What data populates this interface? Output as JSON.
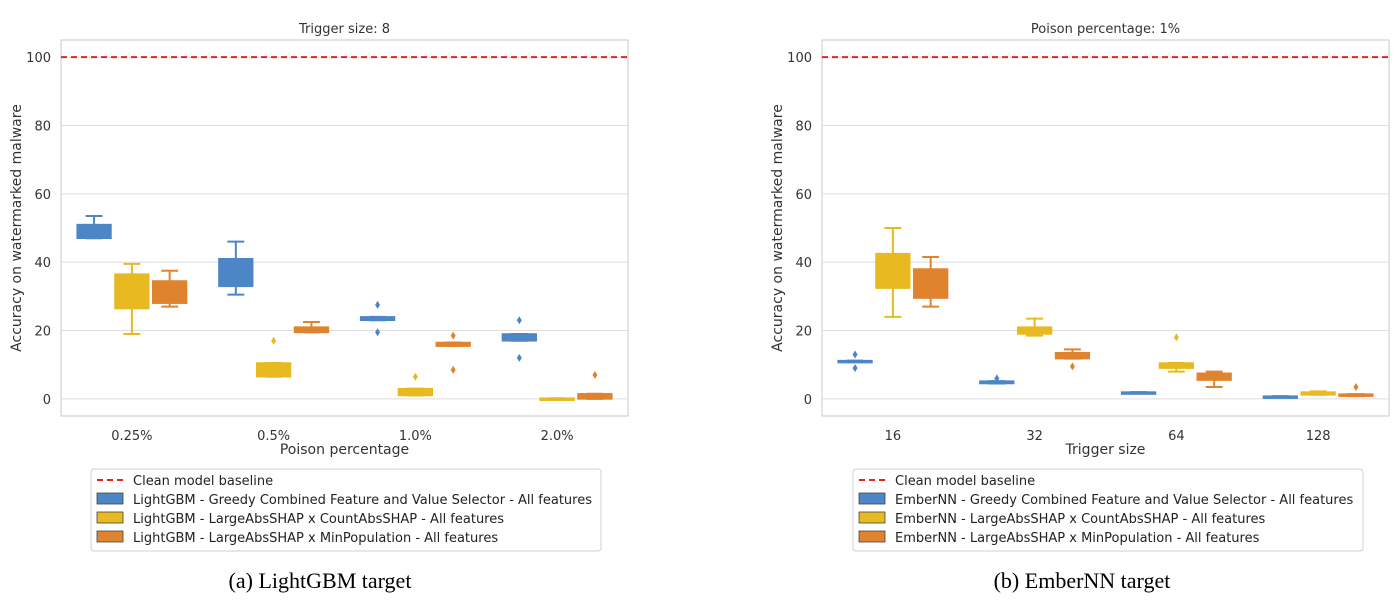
{
  "colors": {
    "greedy": "#4c86c6",
    "countabs": "#e8b920",
    "minpop": "#e0832e",
    "baseline": "#e3261e",
    "grid": "#dddddd",
    "axis": "#c8c8c8"
  },
  "chart_data": [
    {
      "type": "box",
      "title": "Trigger size: 8",
      "xlabel": "Poison percentage",
      "ylabel": "Accuracy on watermarked malware",
      "categories": [
        "0.25%",
        "0.5%",
        "1.0%",
        "2.0%"
      ],
      "ylim": [
        -5,
        105
      ],
      "yticks": [
        0,
        20,
        40,
        60,
        80,
        100
      ],
      "grid": true,
      "legend_position": "below",
      "baseline": {
        "name": "Clean model baseline",
        "value": 100
      },
      "series": [
        {
          "name": "LightGBM - Greedy Combined Feature and Value Selector - All features",
          "color": "#4c86c6",
          "boxes": [
            {
              "q1": 47.0,
              "median": 47.5,
              "q3": 51.0,
              "whisker_low": 47.0,
              "whisker_high": 53.5,
              "outliers": []
            },
            {
              "q1": 33.0,
              "median": 33.0,
              "q3": 41.0,
              "whisker_low": 30.5,
              "whisker_high": 46.0,
              "outliers": []
            },
            {
              "q1": 23.0,
              "median": 23.5,
              "q3": 24.0,
              "whisker_low": 23.0,
              "whisker_high": 24.0,
              "outliers": [
                27.5,
                19.5
              ]
            },
            {
              "q1": 17.0,
              "median": 17.5,
              "q3": 19.0,
              "whisker_low": 17.0,
              "whisker_high": 19.0,
              "outliers": [
                23.0,
                12.0
              ]
            }
          ]
        },
        {
          "name": "LightGBM - LargeAbsSHAP x CountAbsSHAP - All features",
          "color": "#e8b920",
          "boxes": [
            {
              "q1": 26.5,
              "median": 26.5,
              "q3": 36.5,
              "whisker_low": 19.0,
              "whisker_high": 39.5,
              "outliers": []
            },
            {
              "q1": 6.5,
              "median": 7.0,
              "q3": 10.5,
              "whisker_low": 6.5,
              "whisker_high": 10.5,
              "outliers": [
                17.0
              ]
            },
            {
              "q1": 1.0,
              "median": 1.5,
              "q3": 3.0,
              "whisker_low": 1.0,
              "whisker_high": 3.0,
              "outliers": [
                6.5
              ]
            },
            {
              "q1": -0.2,
              "median": 0.0,
              "q3": 0.2,
              "whisker_low": -0.2,
              "whisker_high": 0.2,
              "outliers": []
            }
          ]
        },
        {
          "name": "LightGBM - LargeAbsSHAP x MinPopulation - All features",
          "color": "#e0832e",
          "boxes": [
            {
              "q1": 28.0,
              "median": 28.5,
              "q3": 34.5,
              "whisker_low": 27.0,
              "whisker_high": 37.5,
              "outliers": []
            },
            {
              "q1": 19.5,
              "median": 19.5,
              "q3": 21.0,
              "whisker_low": 19.5,
              "whisker_high": 22.5,
              "outliers": []
            },
            {
              "q1": 15.5,
              "median": 15.5,
              "q3": 16.5,
              "whisker_low": 15.5,
              "whisker_high": 16.5,
              "outliers": [
                18.5,
                8.5
              ]
            },
            {
              "q1": 0.0,
              "median": 0.5,
              "q3": 1.5,
              "whisker_low": 0.0,
              "whisker_high": 1.5,
              "outliers": [
                7.0
              ]
            }
          ]
        }
      ]
    },
    {
      "type": "box",
      "title": "Poison percentage: 1%",
      "xlabel": "Trigger size",
      "ylabel": "Accuracy on watermarked malware",
      "categories": [
        "16",
        "32",
        "64",
        "128"
      ],
      "ylim": [
        -5,
        105
      ],
      "yticks": [
        0,
        20,
        40,
        60,
        80,
        100
      ],
      "grid": true,
      "legend_position": "below",
      "baseline": {
        "name": "Clean model baseline",
        "value": 100
      },
      "series": [
        {
          "name": "EmberNN - Greedy Combined Feature and Value Selector - All features",
          "color": "#4c86c6",
          "boxes": [
            {
              "q1": 10.8,
              "median": 11.0,
              "q3": 11.2,
              "whisker_low": 10.8,
              "whisker_high": 11.2,
              "outliers": [
                13.0,
                9.0
              ]
            },
            {
              "q1": 4.5,
              "median": 4.8,
              "q3": 5.2,
              "whisker_low": 4.5,
              "whisker_high": 5.2,
              "outliers": [
                6.0
              ]
            },
            {
              "q1": 1.6,
              "median": 1.8,
              "q3": 2.0,
              "whisker_low": 1.6,
              "whisker_high": 2.0,
              "outliers": []
            },
            {
              "q1": 0.4,
              "median": 0.6,
              "q3": 0.8,
              "whisker_low": 0.4,
              "whisker_high": 0.8,
              "outliers": []
            }
          ]
        },
        {
          "name": "EmberNN - LargeAbsSHAP x CountAbsSHAP - All features",
          "color": "#e8b920",
          "boxes": [
            {
              "q1": 32.5,
              "median": 32.5,
              "q3": 42.5,
              "whisker_low": 24.0,
              "whisker_high": 50.0,
              "outliers": []
            },
            {
              "q1": 19.0,
              "median": 19.5,
              "q3": 21.0,
              "whisker_low": 18.5,
              "whisker_high": 23.5,
              "outliers": []
            },
            {
              "q1": 9.0,
              "median": 9.5,
              "q3": 10.5,
              "whisker_low": 8.0,
              "whisker_high": 10.5,
              "outliers": [
                18.0
              ]
            },
            {
              "q1": 1.2,
              "median": 1.5,
              "q3": 2.0,
              "whisker_low": 1.2,
              "whisker_high": 2.2,
              "outliers": []
            }
          ]
        },
        {
          "name": "EmberNN - LargeAbsSHAP x MinPopulation - All features",
          "color": "#e0832e",
          "boxes": [
            {
              "q1": 29.5,
              "median": 30.0,
              "q3": 38.0,
              "whisker_low": 27.0,
              "whisker_high": 41.5,
              "outliers": []
            },
            {
              "q1": 11.8,
              "median": 12.5,
              "q3": 13.5,
              "whisker_low": 11.8,
              "whisker_high": 14.5,
              "outliers": [
                9.5
              ]
            },
            {
              "q1": 5.5,
              "median": 6.5,
              "q3": 7.5,
              "whisker_low": 3.5,
              "whisker_high": 8.0,
              "outliers": []
            },
            {
              "q1": 0.8,
              "median": 1.0,
              "q3": 1.4,
              "whisker_low": 0.8,
              "whisker_high": 1.4,
              "outliers": [
                3.5
              ]
            }
          ]
        }
      ]
    }
  ],
  "captions": [
    "(a) LightGBM target",
    "(b) EmberNN target"
  ]
}
